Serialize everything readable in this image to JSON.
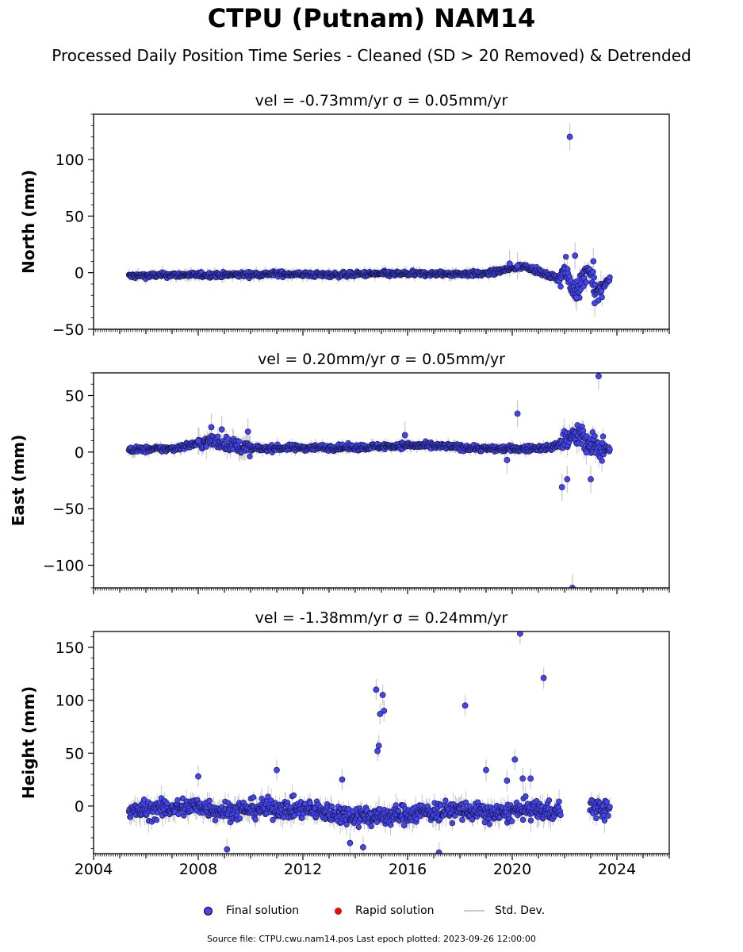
{
  "title": "CTPU (Putnam) NAM14",
  "subtitle": "Processed Daily Position Time Series - Cleaned (SD > 20 Removed) & Detrended",
  "legend": {
    "final": "Final solution",
    "rapid": "Rapid solution",
    "stddev": "Std. Dev."
  },
  "footer": "Source file: CTPU.cwu.nam14.pos  Last epoch plotted: 2023-09-26 12:00:00",
  "colors": {
    "final": "#4545f0",
    "rapid": "#e01010",
    "stddev": "#c8c8c8",
    "axis": "#000000"
  },
  "chart_data": [
    {
      "type": "scatter",
      "title": "vel = -0.73mm/yr   σ = 0.05mm/yr",
      "ylabel": "North (mm)",
      "xlim": [
        2004,
        2026
      ],
      "ylim": [
        -50,
        140
      ],
      "yticks": [
        -50,
        0,
        50,
        100
      ],
      "xticks": [
        2004,
        2008,
        2012,
        2016,
        2020,
        2024
      ],
      "grid": false,
      "data_range": [
        2005.35,
        2023.74
      ],
      "gap": null,
      "series": [
        {
          "x": [
            2005.4,
            2007.0,
            2009.0,
            2011.0,
            2013.0,
            2015.0,
            2017.0,
            2019.0,
            2020.5,
            2021.3,
            2021.8,
            2022.0,
            2022.3,
            2022.6,
            2022.9,
            2023.3,
            2023.7
          ],
          "y": [
            -3,
            -2,
            -2,
            -1,
            -2,
            -1,
            -1,
            -1,
            6,
            -2,
            -5,
            3,
            -15,
            -10,
            5,
            -20,
            -5
          ]
        }
      ],
      "outliers": [
        {
          "x": 2022.2,
          "y": 120
        },
        {
          "x": 2019.9,
          "y": 8
        },
        {
          "x": 2020.2,
          "y": 6
        },
        {
          "x": 2022.4,
          "y": 15
        },
        {
          "x": 2022.45,
          "y": -22
        },
        {
          "x": 2023.1,
          "y": 10
        },
        {
          "x": 2023.15,
          "y": -27
        }
      ]
    },
    {
      "type": "scatter",
      "title": "vel = 0.20mm/yr   σ = 0.05mm/yr",
      "ylabel": "East (mm)",
      "xlim": [
        2004,
        2026
      ],
      "ylim": [
        -120,
        70
      ],
      "yticks": [
        -100,
        -50,
        0,
        50
      ],
      "xticks": [
        2004,
        2008,
        2012,
        2016,
        2020,
        2024
      ],
      "grid": false,
      "data_range": [
        2005.35,
        2023.74
      ],
      "gap": null,
      "series": [
        {
          "x": [
            2005.4,
            2007.0,
            2008.5,
            2010.0,
            2012.0,
            2014.0,
            2016.0,
            2017.5,
            2019.0,
            2020.5,
            2021.5,
            2022.0,
            2022.5,
            2023.0,
            2023.7
          ],
          "y": [
            2,
            3,
            10,
            3,
            4,
            4,
            6,
            5,
            3,
            3,
            4,
            10,
            15,
            5,
            3
          ]
        }
      ],
      "outliers": [
        {
          "x": 2023.3,
          "y": 67
        },
        {
          "x": 2020.2,
          "y": 34
        },
        {
          "x": 2008.9,
          "y": 20
        },
        {
          "x": 2009.9,
          "y": 18
        },
        {
          "x": 2008.0,
          "y": 10
        },
        {
          "x": 2008.5,
          "y": 22
        },
        {
          "x": 2015.9,
          "y": 15
        },
        {
          "x": 2022.3,
          "y": -120
        },
        {
          "x": 2021.9,
          "y": -31
        },
        {
          "x": 2022.1,
          "y": -24
        },
        {
          "x": 2023.0,
          "y": -24
        },
        {
          "x": 2019.8,
          "y": -7
        }
      ]
    },
    {
      "type": "scatter",
      "title": "vel = -1.38mm/yr   σ = 0.24mm/yr",
      "ylabel": "Height (mm)",
      "xlim": [
        2004,
        2026
      ],
      "ylim": [
        -45,
        165
      ],
      "yticks": [
        0,
        50,
        100,
        150
      ],
      "xticks": [
        2004,
        2008,
        2012,
        2016,
        2020,
        2024
      ],
      "grid": false,
      "data_range": [
        2005.35,
        2023.74
      ],
      "gap": [
        2021.85,
        2022.95
      ],
      "series": [
        {
          "x": [
            2005.4,
            2006.5,
            2008.0,
            2009.0,
            2010.5,
            2012.0,
            2013.5,
            2015.0,
            2016.5,
            2018.0,
            2019.5,
            2020.5,
            2021.5,
            2023.0,
            2023.7
          ],
          "y": [
            -5,
            -3,
            0,
            -5,
            -2,
            -3,
            -8,
            -10,
            -6,
            -4,
            -8,
            -3,
            -5,
            0,
            -5
          ]
        }
      ],
      "outliers": [
        {
          "x": 2020.3,
          "y": 163
        },
        {
          "x": 2021.2,
          "y": 121
        },
        {
          "x": 2014.8,
          "y": 110
        },
        {
          "x": 2015.05,
          "y": 105
        },
        {
          "x": 2015.1,
          "y": 90
        },
        {
          "x": 2014.95,
          "y": 87
        },
        {
          "x": 2018.2,
          "y": 95
        },
        {
          "x": 2014.9,
          "y": 57
        },
        {
          "x": 2014.85,
          "y": 52
        },
        {
          "x": 2020.1,
          "y": 44
        },
        {
          "x": 2011.0,
          "y": 34
        },
        {
          "x": 2019.0,
          "y": 34
        },
        {
          "x": 2008.0,
          "y": 28
        },
        {
          "x": 2013.5,
          "y": 25
        },
        {
          "x": 2020.4,
          "y": 26
        },
        {
          "x": 2020.7,
          "y": 26
        },
        {
          "x": 2009.1,
          "y": -41
        },
        {
          "x": 2014.3,
          "y": -39
        },
        {
          "x": 2013.8,
          "y": -35
        },
        {
          "x": 2017.2,
          "y": -44
        },
        {
          "x": 2019.8,
          "y": 24
        }
      ]
    }
  ]
}
